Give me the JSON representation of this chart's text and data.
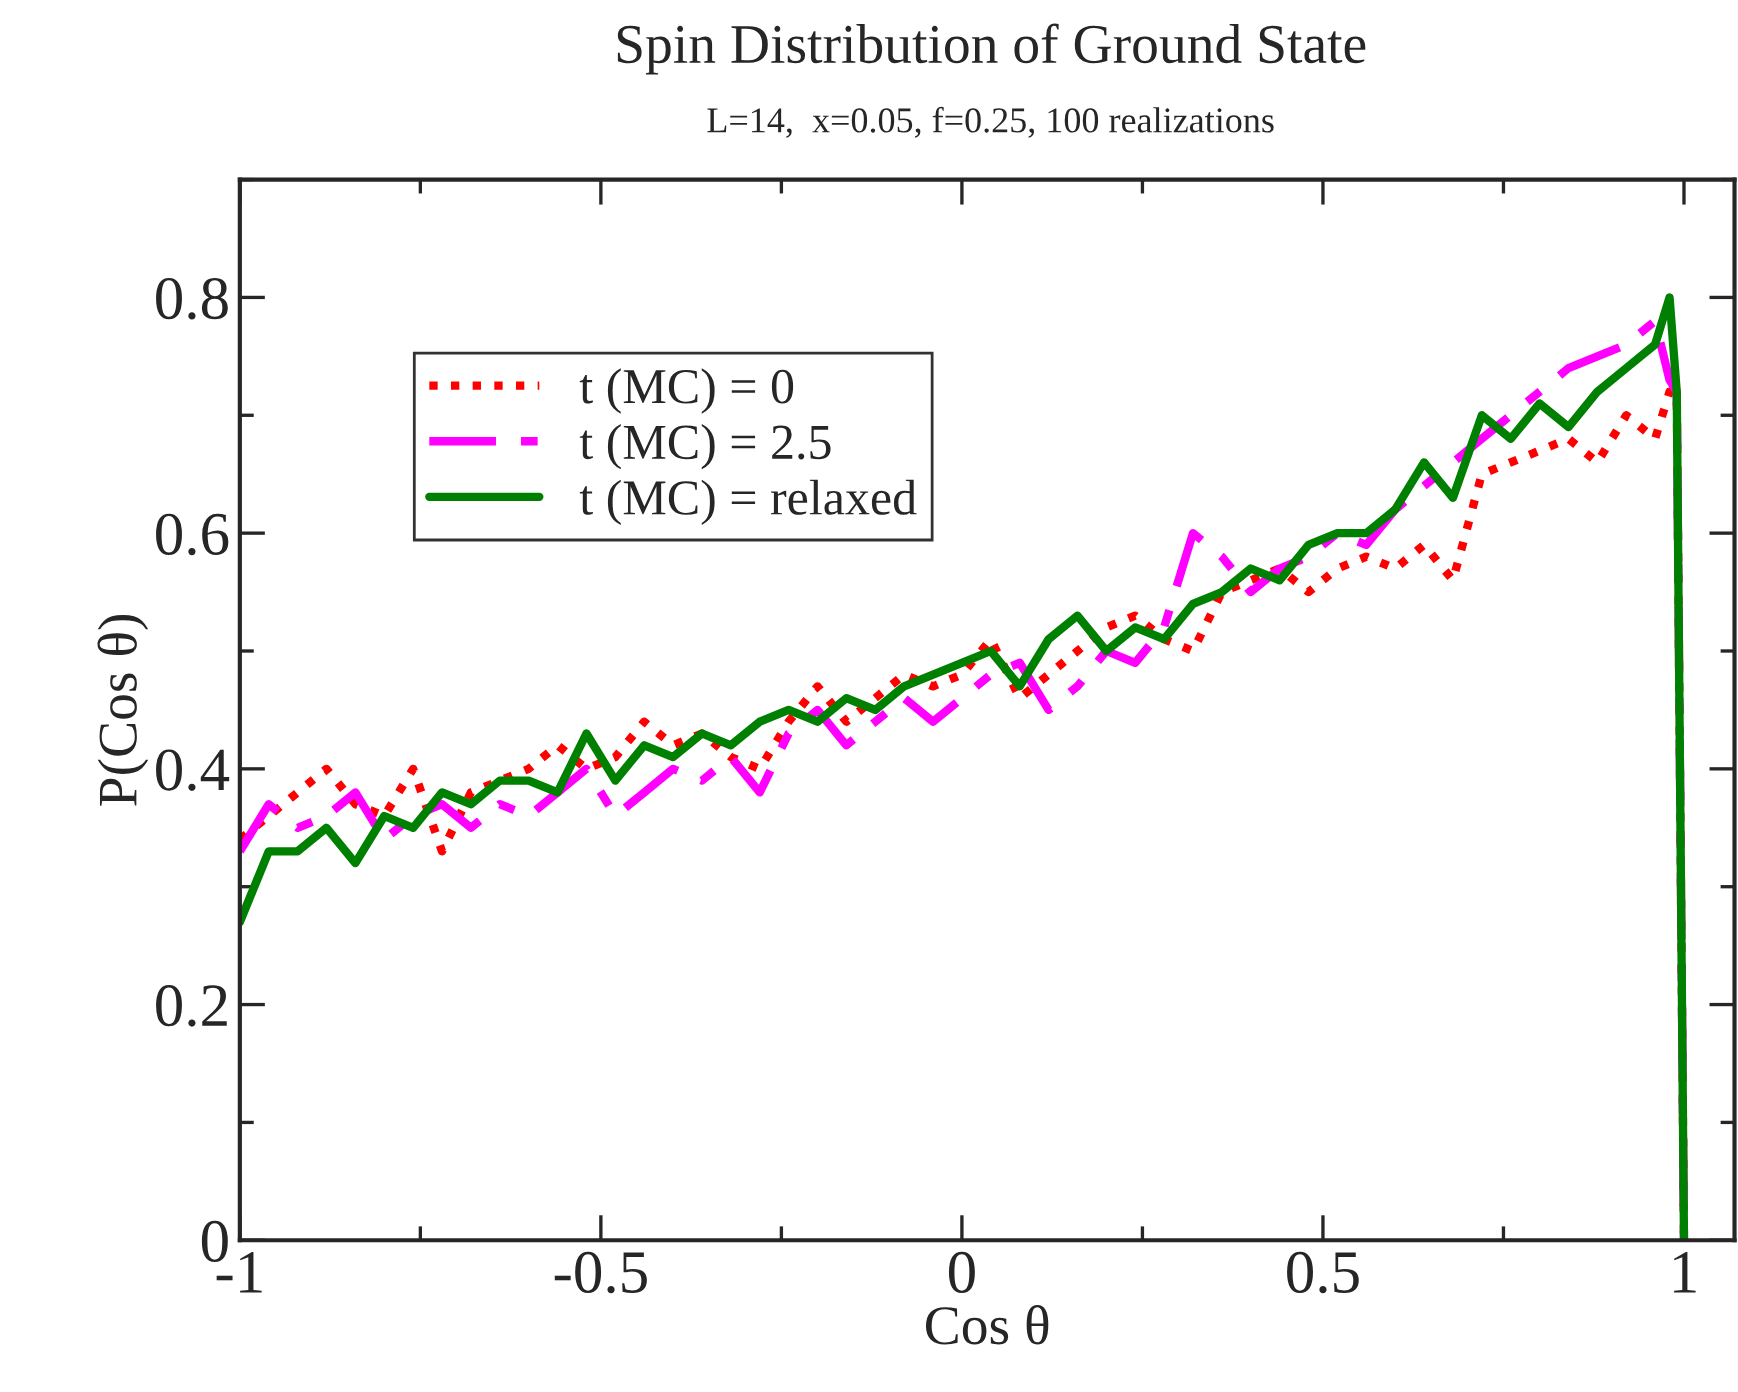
{
  "chart_data": {
    "type": "line",
    "title": "Spin Distribution of Ground State",
    "subtitle": "L=14,  x=0.05, f=0.25, 100 realizations",
    "xlabel": "Cos θ",
    "ylabel": "P(Cos θ)",
    "x": [
      -1.0,
      -0.96,
      -0.92,
      -0.88,
      -0.84,
      -0.8,
      -0.76,
      -0.72,
      -0.68,
      -0.64,
      -0.6,
      -0.56,
      -0.52,
      -0.48,
      -0.44,
      -0.4,
      -0.36,
      -0.32,
      -0.28,
      -0.24,
      -0.2,
      -0.16,
      -0.12,
      -0.08,
      -0.04,
      0.0,
      0.04,
      0.08,
      0.12,
      0.16,
      0.2,
      0.24,
      0.28,
      0.32,
      0.36,
      0.4,
      0.44,
      0.48,
      0.52,
      0.56,
      0.6,
      0.64,
      0.68,
      0.72,
      0.76,
      0.8,
      0.84,
      0.88,
      0.92,
      0.96,
      0.98,
      0.99,
      1.0
    ],
    "series": [
      {
        "name": "t (MC) = 0",
        "color": "#ff0000",
        "line_style": "dotted",
        "values": [
          0.34,
          0.36,
          0.38,
          0.4,
          0.37,
          0.36,
          0.4,
          0.33,
          0.38,
          0.39,
          0.4,
          0.42,
          0.4,
          0.41,
          0.44,
          0.42,
          0.43,
          0.41,
          0.4,
          0.44,
          0.47,
          0.44,
          0.46,
          0.48,
          0.47,
          0.48,
          0.51,
          0.46,
          0.48,
          0.5,
          0.52,
          0.53,
          0.51,
          0.5,
          0.55,
          0.56,
          0.57,
          0.55,
          0.57,
          0.58,
          0.57,
          0.59,
          0.56,
          0.65,
          0.66,
          0.67,
          0.68,
          0.66,
          0.7,
          0.68,
          0.72,
          0.72,
          0.0
        ]
      },
      {
        "name": "t (MC) = 2.5",
        "color": "#ff00ff",
        "line_style": "dashed",
        "values": [
          0.33,
          0.37,
          0.35,
          0.36,
          0.38,
          0.34,
          0.36,
          0.37,
          0.35,
          0.37,
          0.36,
          0.38,
          0.4,
          0.36,
          0.38,
          0.4,
          0.39,
          0.41,
          0.38,
          0.43,
          0.45,
          0.42,
          0.44,
          0.46,
          0.44,
          0.46,
          0.48,
          0.49,
          0.45,
          0.47,
          0.5,
          0.49,
          0.52,
          0.6,
          0.58,
          0.55,
          0.57,
          0.58,
          0.6,
          0.59,
          0.62,
          0.64,
          0.66,
          0.68,
          0.7,
          0.72,
          0.74,
          0.75,
          0.76,
          0.78,
          0.73,
          0.72,
          0.0
        ]
      },
      {
        "name": "t (MC) = relaxed",
        "color": "#008000",
        "line_style": "solid",
        "values": [
          0.27,
          0.33,
          0.33,
          0.35,
          0.32,
          0.36,
          0.35,
          0.38,
          0.37,
          0.39,
          0.39,
          0.38,
          0.43,
          0.39,
          0.42,
          0.41,
          0.43,
          0.42,
          0.44,
          0.45,
          0.44,
          0.46,
          0.45,
          0.47,
          0.48,
          0.49,
          0.5,
          0.47,
          0.51,
          0.53,
          0.5,
          0.52,
          0.51,
          0.54,
          0.55,
          0.57,
          0.56,
          0.59,
          0.6,
          0.6,
          0.62,
          0.66,
          0.63,
          0.7,
          0.68,
          0.71,
          0.69,
          0.72,
          0.74,
          0.76,
          0.8,
          0.72,
          0.0
        ]
      }
    ],
    "xlim": [
      -1,
      1.07
    ],
    "ylim": [
      0,
      0.9
    ],
    "xticks": [
      -1,
      -0.5,
      0,
      0.5,
      1
    ],
    "yticks": [
      0,
      0.2,
      0.4,
      0.6,
      0.8
    ],
    "grid": false,
    "legend": "top left",
    "marker": "none"
  }
}
